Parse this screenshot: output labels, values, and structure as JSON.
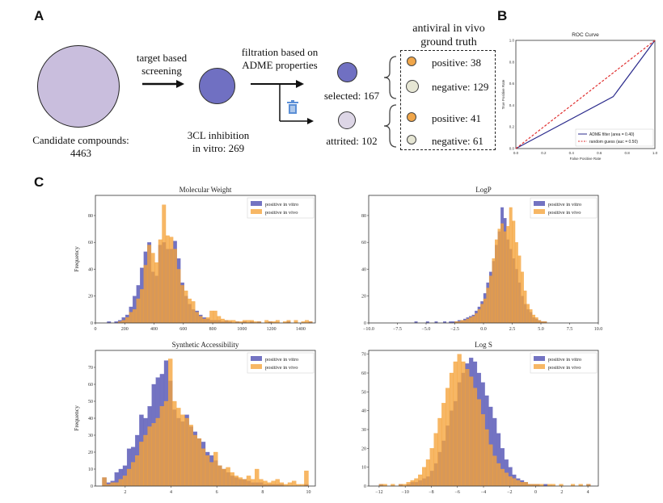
{
  "colors": {
    "vitro": "#6b6bbf",
    "vivo": "#f5a33a",
    "big_circle": "#c9bedd",
    "small_circle": "#7070c2",
    "pos_dot": "#f0a64a",
    "neg_dot": "#e6e6d4",
    "attrited_dot": "#ddd6e6",
    "roc_line": "#2b2b8c",
    "roc_random": "#e03030",
    "trash": "#5b8fd6"
  },
  "panel_a": {
    "letter": "A",
    "candidate_label": "Candidate compounds:",
    "candidate_count": "4463",
    "screening_line1": "target based",
    "screening_line2": "screening",
    "inhibition_line1": "3CL inhibition",
    "inhibition_line2": "in vitro: 269",
    "filtration_line1": "filtration based on",
    "filtration_line2": "ADME properties",
    "trash_icon": "trash-icon",
    "selected_label": "selected: 167",
    "attrited_label": "attrited: 102",
    "gt_title_line1": "antiviral in vivo",
    "gt_title_line2": "ground truth",
    "sel_positive": "positive: 38",
    "sel_negative": "negative: 129",
    "att_positive": "positive: 41",
    "att_negative": "negative: 61"
  },
  "panel_b": {
    "letter": "B"
  },
  "panel_c": {
    "letter": "C"
  },
  "chart_data": [
    {
      "type": "line",
      "id": "roc",
      "title": "ROC Curve",
      "xlabel": "False Positive Rate",
      "ylabel": "True Positive Rate",
      "xlim": [
        0,
        1
      ],
      "ylim": [
        0,
        1
      ],
      "xticks": [
        "0.0",
        "0.2",
        "0.4",
        "0.6",
        "0.8",
        "1.0"
      ],
      "yticks": [
        "0.0",
        "0.2",
        "0.4",
        "0.6",
        "0.8",
        "1.0"
      ],
      "series": [
        {
          "name": "ADME filter (area = 0.40)",
          "x": [
            0,
            0.7,
            1
          ],
          "y": [
            0,
            0.48,
            1
          ],
          "style": "solid"
        },
        {
          "name": "random guess (auc = 0.50)",
          "x": [
            0,
            1
          ],
          "y": [
            0,
            1
          ],
          "style": "dashed"
        }
      ],
      "legend": "bottom-right"
    },
    {
      "type": "bar",
      "id": "mw",
      "title": "Molecular Weight",
      "xlabel": "",
      "ylabel": "Frequency",
      "xlim": [
        0,
        1500
      ],
      "ylim": [
        0,
        95
      ],
      "xticks": [
        0,
        200,
        400,
        600,
        800,
        1000,
        1200,
        1400
      ],
      "yticks": [
        0,
        20,
        40,
        60,
        80
      ],
      "bin_start": 80,
      "bin_width": 25,
      "series": [
        {
          "name": "positive in vitro",
          "values": [
            1,
            0,
            1,
            2,
            4,
            6,
            12,
            20,
            28,
            41,
            53,
            60,
            38,
            35,
            58,
            60,
            55,
            55,
            61,
            48,
            30,
            20,
            14,
            10,
            9,
            6,
            4,
            3,
            2,
            2,
            2,
            1,
            2,
            1,
            0,
            1,
            0,
            1,
            0,
            1,
            0,
            1,
            0,
            0,
            1,
            0,
            0,
            0,
            0,
            1,
            0,
            0,
            0,
            0,
            0,
            1
          ]
        },
        {
          "name": "positive in vivo",
          "values": [
            0,
            0,
            0,
            1,
            2,
            4,
            8,
            10,
            18,
            25,
            43,
            58,
            52,
            45,
            62,
            88,
            65,
            64,
            55,
            40,
            28,
            24,
            18,
            16,
            8,
            5,
            3,
            4,
            9,
            9,
            5,
            3,
            2,
            2,
            2,
            1,
            1,
            2,
            2,
            2,
            1,
            1,
            0,
            2,
            1,
            1,
            2,
            0,
            1,
            2,
            0,
            2,
            0,
            1,
            2,
            1
          ]
        }
      ],
      "legend": "top-right"
    },
    {
      "type": "bar",
      "id": "logp",
      "title": "LogP",
      "xlabel": "",
      "ylabel": "",
      "xlim": [
        -10,
        10
      ],
      "ylim": [
        0,
        95
      ],
      "xticks": [
        "−10.0",
        "−7.5",
        "−5.0",
        "−2.5",
        "0.0",
        "2.5",
        "5.0",
        "7.5",
        "10.0"
      ],
      "tick_values": [
        -10,
        -7.5,
        -5,
        -2.5,
        0,
        2.5,
        5,
        7.5,
        10
      ],
      "yticks": [
        0,
        20,
        40,
        60,
        80
      ],
      "bin_start": -6,
      "bin_width": 0.25,
      "series": [
        {
          "name": "positive in vitro",
          "values": [
            1,
            0,
            0,
            0,
            1,
            0,
            0,
            1,
            0,
            0,
            1,
            0,
            1,
            1,
            1,
            2,
            2,
            3,
            4,
            5,
            6,
            9,
            12,
            16,
            22,
            30,
            38,
            46,
            58,
            68,
            86,
            78,
            62,
            55,
            48,
            40,
            30,
            20,
            14,
            10,
            8,
            4,
            3,
            2,
            1,
            1
          ]
        },
        {
          "name": "positive in vivo",
          "values": [
            0,
            0,
            0,
            0,
            0,
            0,
            0,
            0,
            0,
            0,
            0,
            0,
            0,
            0,
            1,
            1,
            2,
            2,
            3,
            4,
            5,
            7,
            10,
            14,
            18,
            26,
            35,
            48,
            62,
            70,
            74,
            68,
            72,
            86,
            76,
            60,
            50,
            38,
            24,
            14,
            10,
            6,
            4,
            2,
            1,
            1
          ]
        }
      ],
      "legend": "top-right"
    },
    {
      "type": "bar",
      "id": "sa",
      "title": "Synthetic Accessibility",
      "xlabel": "",
      "ylabel": "Frequency",
      "xlim": [
        0.7,
        10.3
      ],
      "ylim": [
        0,
        80
      ],
      "xticks": [
        2,
        4,
        6,
        8,
        10
      ],
      "yticks": [
        0,
        10,
        20,
        30,
        40,
        50,
        60,
        70
      ],
      "bin_start": 1.0,
      "bin_width": 0.18,
      "series": [
        {
          "name": "positive in vitro",
          "values": [
            5,
            2,
            3,
            8,
            10,
            12,
            22,
            23,
            30,
            42,
            40,
            47,
            60,
            64,
            66,
            74,
            62,
            45,
            40,
            38,
            42,
            35,
            32,
            28,
            26,
            20,
            18,
            15,
            12,
            10,
            8,
            6,
            5,
            4,
            4,
            3,
            2,
            2,
            2,
            1,
            1,
            1,
            1,
            1,
            0,
            0,
            0,
            0,
            0,
            1
          ]
        },
        {
          "name": "positive in vivo",
          "values": [
            5,
            1,
            2,
            2,
            4,
            6,
            10,
            14,
            18,
            26,
            30,
            35,
            37,
            40,
            47,
            50,
            75,
            50,
            46,
            42,
            40,
            36,
            30,
            28,
            22,
            18,
            14,
            20,
            12,
            10,
            11,
            8,
            6,
            5,
            4,
            6,
            4,
            10,
            4,
            3,
            2,
            3,
            4,
            2,
            1,
            2,
            3,
            1,
            1,
            9
          ]
        }
      ],
      "legend": "top-right"
    },
    {
      "type": "bar",
      "id": "logs",
      "title": "Log S",
      "xlabel": "",
      "ylabel": "",
      "xlim": [
        -12.8,
        4.8
      ],
      "ylim": [
        0,
        72
      ],
      "xticks": [
        "−12",
        "−10",
        "−8",
        "−6",
        "−4",
        "−2",
        "0",
        "2",
        "4"
      ],
      "tick_values": [
        -12,
        -10,
        -8,
        -6,
        -4,
        -2,
        0,
        2,
        4
      ],
      "bin_start": -12,
      "bin_width": 0.3,
      "yticks": [
        0,
        10,
        20,
        30,
        40,
        50,
        60,
        70
      ],
      "series": [
        {
          "name": "positive in vitro",
          "values": [
            1,
            0,
            0,
            0,
            0,
            1,
            0,
            1,
            2,
            2,
            3,
            4,
            5,
            8,
            12,
            18,
            24,
            32,
            40,
            45,
            55,
            60,
            65,
            68,
            66,
            60,
            55,
            48,
            42,
            36,
            28,
            20,
            14,
            10,
            6,
            4,
            3,
            2,
            1,
            1,
            1,
            0,
            1,
            0,
            0,
            0,
            0,
            0,
            0,
            0,
            0,
            0,
            0,
            1
          ]
        },
        {
          "name": "positive in vivo",
          "values": [
            1,
            1,
            0,
            1,
            0,
            1,
            1,
            2,
            3,
            4,
            6,
            10,
            14,
            20,
            28,
            36,
            44,
            52,
            60,
            66,
            70,
            66,
            62,
            58,
            52,
            46,
            38,
            30,
            22,
            16,
            12,
            9,
            7,
            5,
            4,
            3,
            2,
            2,
            1,
            1,
            1,
            1,
            0,
            1,
            1,
            0,
            1,
            0,
            0,
            1,
            0,
            1,
            0,
            1
          ]
        }
      ],
      "legend": "top-right"
    }
  ]
}
